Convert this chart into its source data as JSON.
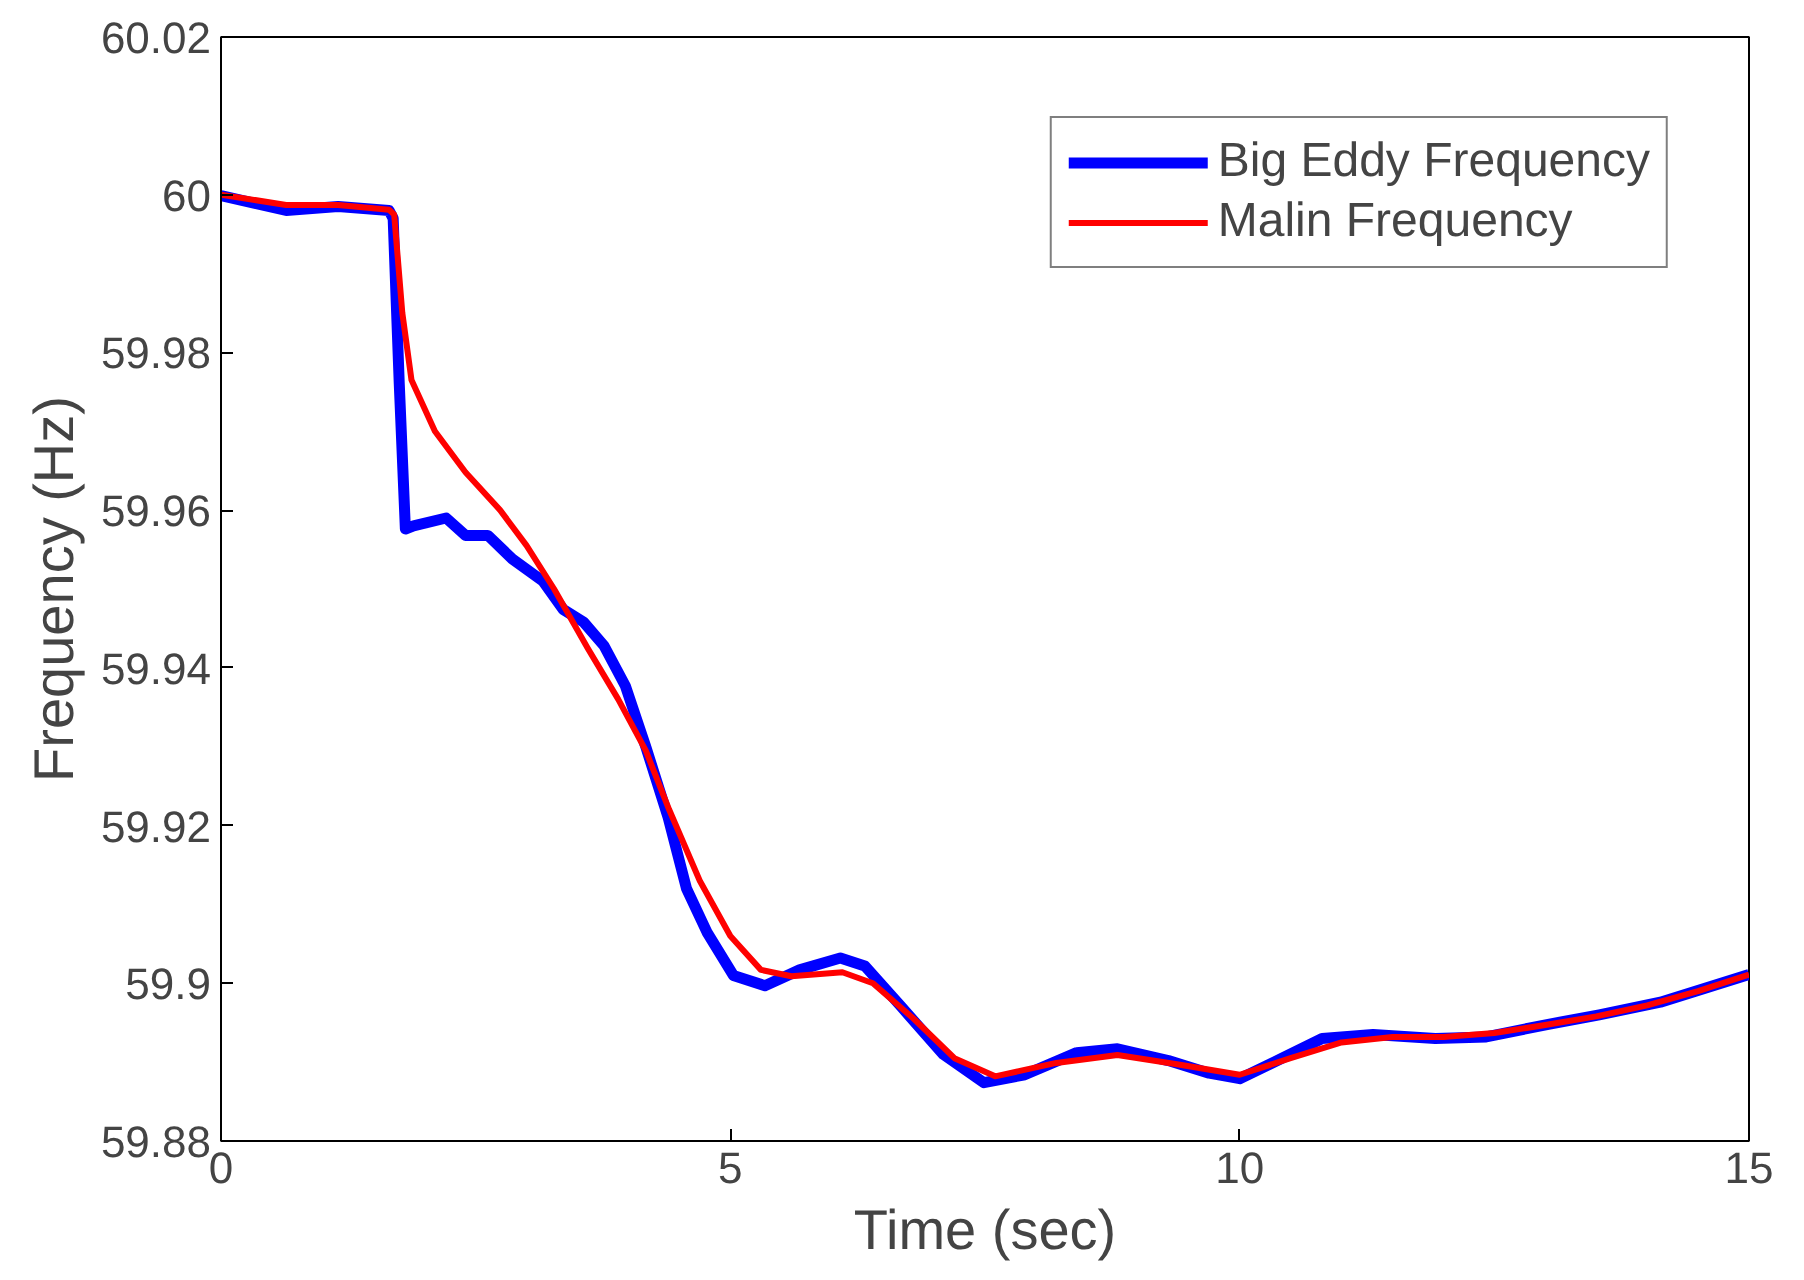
{
  "chart_data": {
    "type": "line",
    "xlabel": "Time (sec)",
    "ylabel": "Frequency (Hz)",
    "xlim": [
      0,
      15
    ],
    "ylim": [
      59.88,
      60.02
    ],
    "xticks": [
      0,
      5,
      10,
      15
    ],
    "yticks": [
      59.88,
      59.9,
      59.92,
      59.94,
      59.96,
      59.98,
      60,
      60.02
    ],
    "grid": false,
    "legend": "top right",
    "series": [
      {
        "name": "Big Eddy Frequency",
        "color": "#0000ff",
        "x": [
          0,
          0.64,
          1.15,
          1.65,
          1.69,
          1.75,
          1.81,
          1.89,
          2.21,
          2.4,
          2.62,
          2.86,
          3.16,
          3.36,
          3.56,
          3.76,
          3.97,
          4.17,
          4.39,
          4.57,
          4.77,
          5.03,
          5.34,
          5.68,
          6.08,
          6.32,
          6.68,
          7.09,
          7.49,
          7.89,
          8.4,
          8.8,
          9.3,
          9.7,
          10.0,
          10.4,
          10.81,
          11.31,
          11.92,
          12.42,
          13.03,
          13.53,
          14.13,
          15
        ],
        "values": [
          59.9999,
          59.998,
          59.9985,
          59.998,
          59.997,
          59.976,
          59.9576,
          59.958,
          59.959,
          59.9568,
          59.9568,
          59.9538,
          59.951,
          59.9474,
          59.9458,
          59.9428,
          59.9377,
          59.93,
          59.921,
          59.912,
          59.9065,
          59.901,
          59.8997,
          59.9017,
          59.9032,
          59.9022,
          59.897,
          59.891,
          59.8874,
          59.8884,
          59.8912,
          59.8917,
          59.8902,
          59.8886,
          59.8879,
          59.8904,
          59.893,
          59.8935,
          59.893,
          59.8932,
          59.8948,
          59.896,
          59.8976,
          59.9011
        ]
      },
      {
        "name": "Malin Frequency",
        "color": "#ff0000",
        "x": [
          0,
          0.64,
          1.15,
          1.65,
          1.7,
          1.78,
          1.87,
          2.1,
          2.4,
          2.74,
          3.0,
          3.27,
          3.6,
          3.9,
          4.17,
          4.4,
          4.7,
          5.0,
          5.3,
          5.6,
          6.1,
          6.4,
          6.8,
          7.2,
          7.6,
          8.2,
          8.8,
          9.4,
          10.0,
          10.5,
          11.0,
          11.5,
          12.0,
          12.5,
          13.0,
          13.5,
          14.0,
          14.5,
          15
        ],
        "values": [
          60.0,
          59.9987,
          59.9987,
          59.9981,
          59.9975,
          59.985,
          59.9765,
          59.97,
          59.9648,
          59.96,
          59.9555,
          59.95,
          59.9425,
          59.936,
          59.9295,
          59.922,
          59.913,
          59.906,
          59.9017,
          59.9009,
          59.9014,
          59.9,
          59.8955,
          59.8905,
          59.8882,
          59.8899,
          59.8909,
          59.8897,
          59.8884,
          59.8905,
          59.8925,
          59.8932,
          59.8932,
          59.8937,
          59.8947,
          59.8958,
          59.8972,
          59.899,
          59.9011
        ]
      }
    ]
  }
}
